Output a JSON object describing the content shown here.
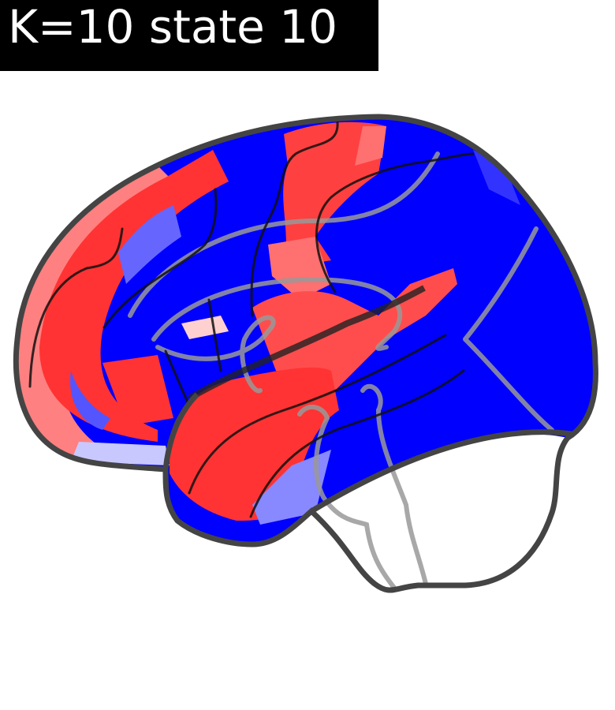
{
  "title": "K=10 state 10"
}
